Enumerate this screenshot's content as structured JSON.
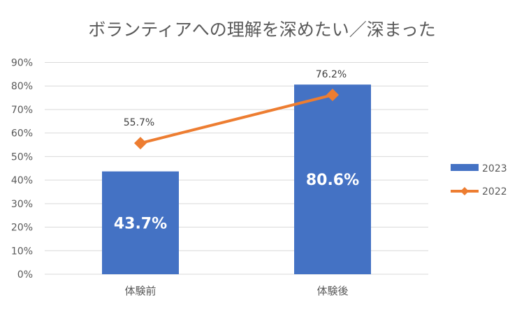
{
  "chart_data": {
    "type": "bar",
    "title": "ボランティアへの理解を深めたい／深まった",
    "categories": [
      "体験前",
      "体験後"
    ],
    "yticks": [
      "0%",
      "10%",
      "20%",
      "30%",
      "40%",
      "50%",
      "60%",
      "70%",
      "80%",
      "90%"
    ],
    "ylim": [
      0,
      90
    ],
    "grid": true,
    "legend_position": "right",
    "series": [
      {
        "name": "2023",
        "type": "bar",
        "color": "#4472C4",
        "values": [
          43.7,
          80.6
        ],
        "labels": [
          "43.7%",
          "80.6%"
        ]
      },
      {
        "name": "2022",
        "type": "line",
        "color": "#ED7D31",
        "marker": "diamond",
        "values": [
          55.7,
          76.2
        ],
        "labels": [
          "55.7%",
          "76.2%"
        ]
      }
    ]
  }
}
